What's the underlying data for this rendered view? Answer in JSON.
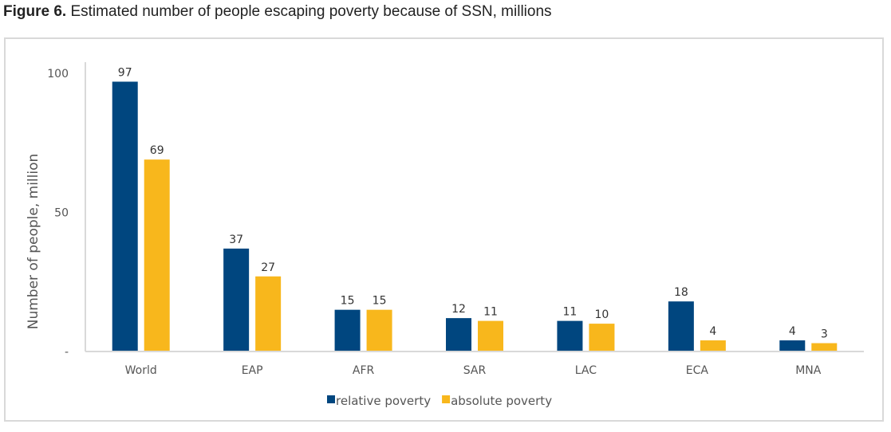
{
  "figure": {
    "label": "Figure 6.",
    "caption": "Estimated number of people escaping poverty because of SSN, millions"
  },
  "chart_data": {
    "type": "bar",
    "categories": [
      "World",
      "EAP",
      "AFR",
      "SAR",
      "LAC",
      "ECA",
      "MNA"
    ],
    "series": [
      {
        "name": "relative poverty",
        "color": "#00467f",
        "values": [
          97,
          37,
          15,
          12,
          11,
          18,
          4
        ]
      },
      {
        "name": "absolute poverty",
        "color": "#f8b71c",
        "values": [
          69,
          27,
          15,
          11,
          10,
          4,
          3
        ]
      }
    ],
    "ylabel": "Number of people, million",
    "ylim": [
      0,
      100
    ],
    "yticks": [
      {
        "value": 0,
        "label": "-"
      },
      {
        "value": 50,
        "label": "50"
      },
      {
        "value": 100,
        "label": "100"
      }
    ],
    "grid": false,
    "legend_position": "bottom-center"
  }
}
